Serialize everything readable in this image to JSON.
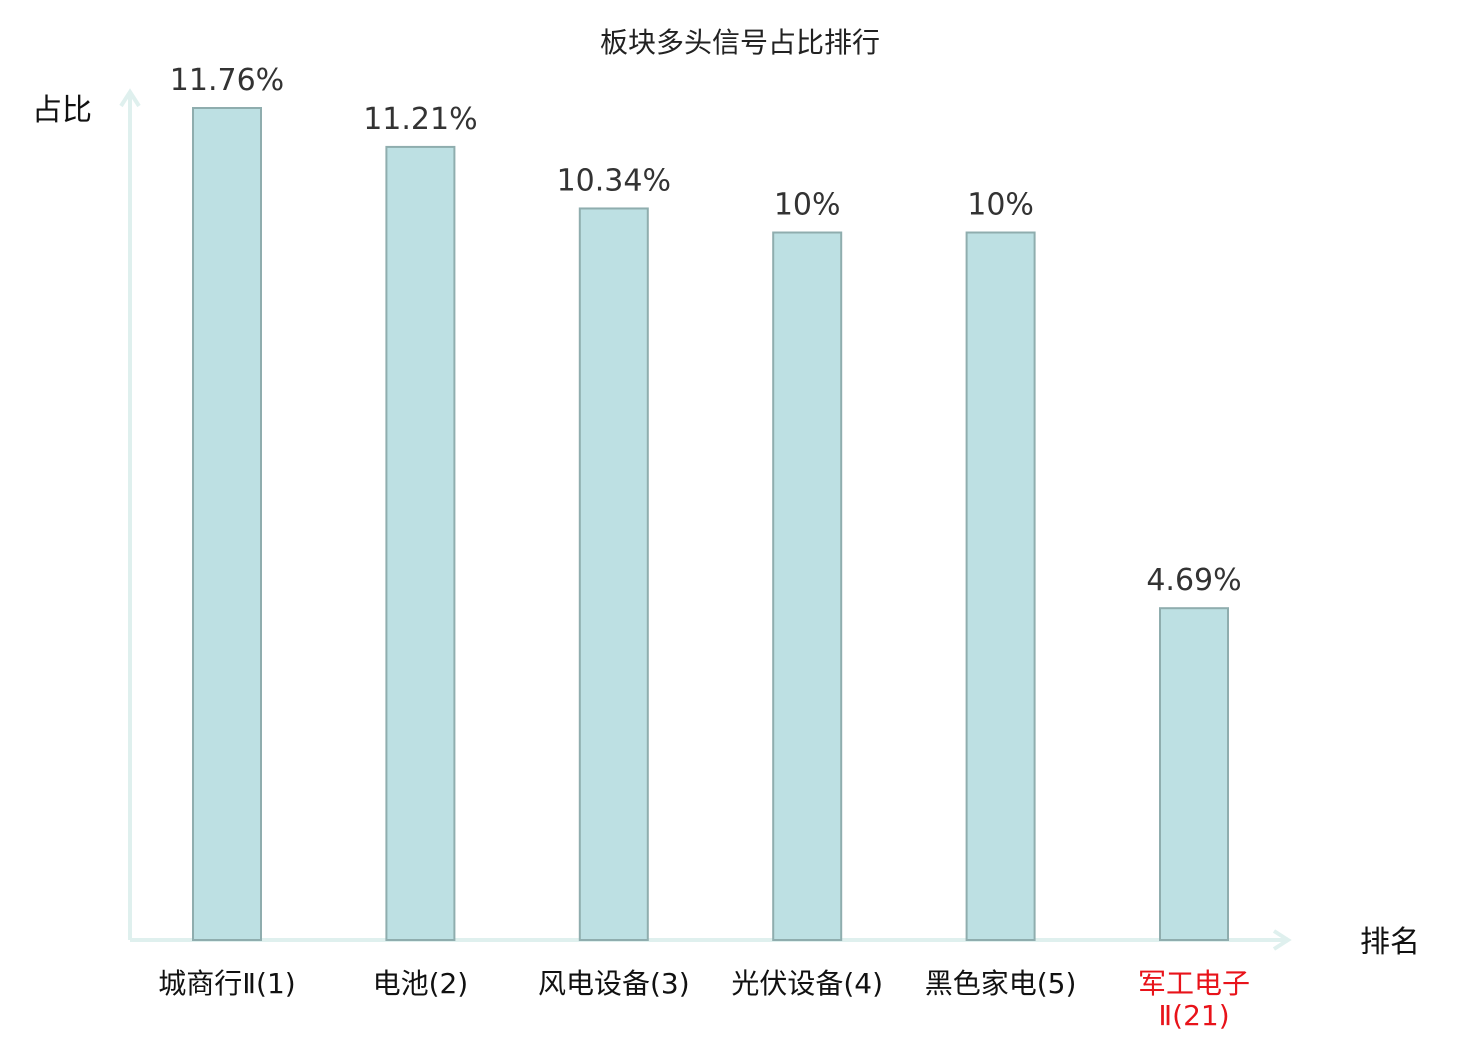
{
  "chart_data": {
    "type": "bar",
    "title": "板块多头信号占比排行",
    "ylabel": "占比",
    "xlabel": "排名",
    "ylim": [
      0,
      12.5
    ],
    "grid": false,
    "categories": [
      [
        "城商行Ⅱ(1)"
      ],
      [
        "电池(2)"
      ],
      [
        "风电设备(3)"
      ],
      [
        "光伏设备(4)"
      ],
      [
        "黑色家电(5)"
      ],
      [
        "军工电子",
        "Ⅱ(21)"
      ]
    ],
    "values": [
      11.76,
      11.21,
      10.34,
      10,
      10,
      4.69
    ],
    "value_labels": [
      "11.76%",
      "11.21%",
      "10.34%",
      "10%",
      "10%",
      "4.69%"
    ],
    "highlight_index": 5
  },
  "colors": {
    "bar_fill": "#bde0e3",
    "bar_stroke": "#8fadae",
    "axis": "#dff0ee",
    "highlight_text": "#e8131a",
    "text": "#111111"
  }
}
